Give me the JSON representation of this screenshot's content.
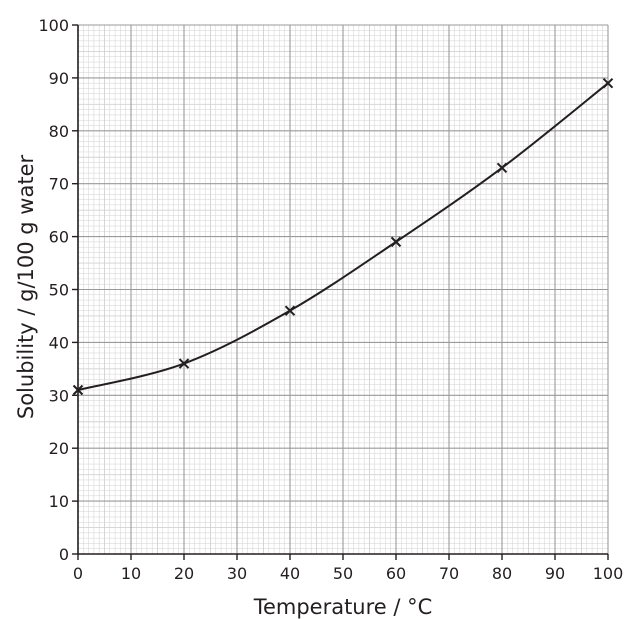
{
  "chart_data": {
    "type": "line",
    "title": "",
    "xlabel": "Temperature / °C",
    "ylabel": "Solubility / g/100 g water",
    "xlim": [
      0,
      100
    ],
    "ylim": [
      0,
      100
    ],
    "x_ticks": [
      "0",
      "10",
      "20",
      "30",
      "40",
      "50",
      "60",
      "70",
      "80",
      "90",
      "100"
    ],
    "y_ticks": [
      "0",
      "10",
      "20",
      "30",
      "40",
      "50",
      "60",
      "70",
      "80",
      "90",
      "100"
    ],
    "grid": true,
    "grid_minor_step": 2,
    "grid_major_step": 10,
    "marker": "cross",
    "smooth_curve": true,
    "series": [
      {
        "x": [
          0,
          20,
          40,
          60,
          80,
          100
        ],
        "values": [
          31,
          36,
          46,
          59,
          73,
          89
        ]
      }
    ],
    "colors": {
      "grid_minor": "#d2d2d2",
      "grid_major": "#9a9a9a",
      "line": "#231f20"
    }
  }
}
